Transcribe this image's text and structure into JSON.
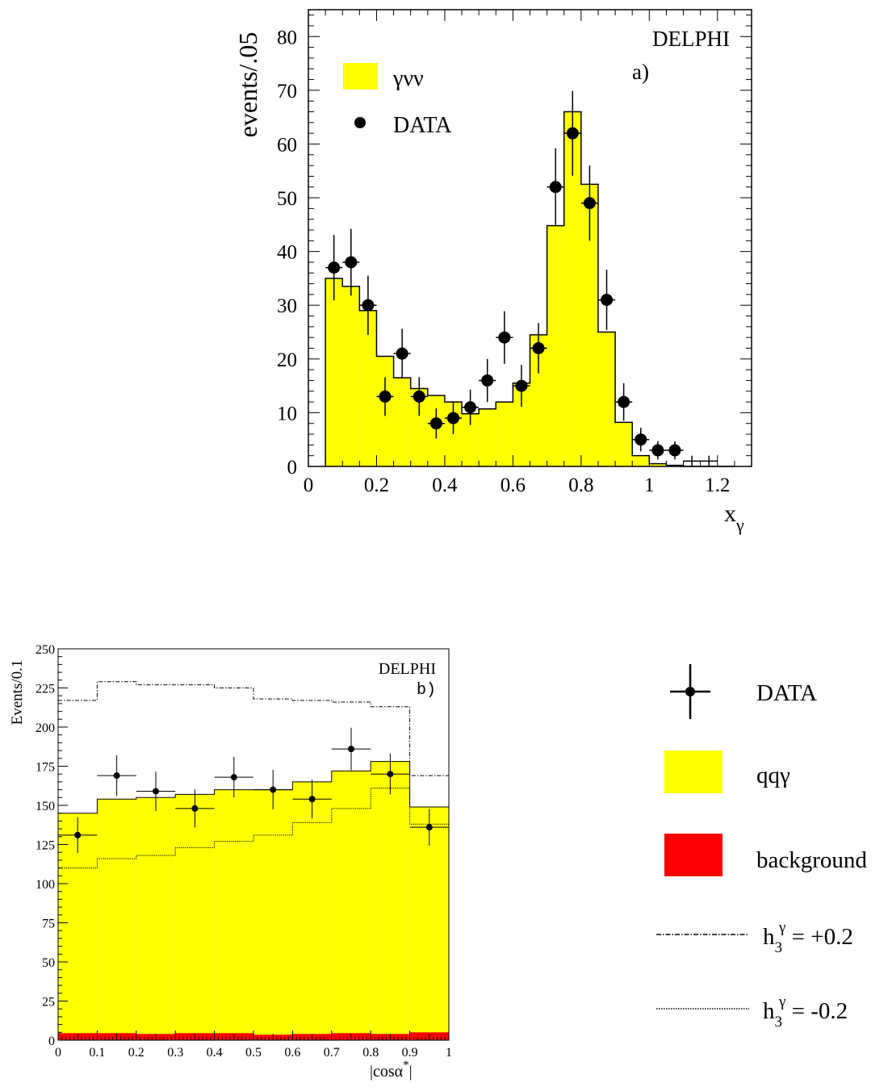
{
  "chart_data": [
    {
      "type": "bar",
      "panel": "a)",
      "experiment": "DELPHI",
      "ylabel": "events/.05",
      "xlabel": "x",
      "xlabel_sub": "γ",
      "xlim": [
        0,
        1.3
      ],
      "ylim": [
        0,
        85
      ],
      "xticks": [
        0,
        0.2,
        0.4,
        0.6,
        0.8,
        1,
        1.2
      ],
      "xtick_labels": [
        "0",
        "0.2",
        "0.4",
        "0.6",
        "0.8",
        "1",
        "1.2"
      ],
      "yticks": [
        0,
        10,
        20,
        30,
        40,
        50,
        60,
        70,
        80
      ],
      "ytick_labels": [
        "0",
        "10",
        "20",
        "30",
        "40",
        "50",
        "60",
        "70",
        "80"
      ],
      "legend_position": "top-left",
      "legend": {
        "mc": "γνν",
        "data": "DATA"
      },
      "colors": {
        "mc_fill": "#ffff00",
        "data": "#000000"
      },
      "mc_bins": {
        "edges": [
          0.05,
          0.1,
          0.15,
          0.2,
          0.25,
          0.3,
          0.35,
          0.4,
          0.45,
          0.5,
          0.55,
          0.6,
          0.65,
          0.7,
          0.75,
          0.8,
          0.85,
          0.9,
          0.95,
          1.0,
          1.05,
          1.1,
          1.15,
          1.2,
          1.25
        ],
        "values": [
          35,
          33.5,
          29,
          20.5,
          16.5,
          14.5,
          13.2,
          12,
          9.8,
          10.7,
          12,
          15.5,
          24.5,
          44.8,
          66,
          52.5,
          25,
          8.2,
          2,
          0.5,
          0.2,
          0,
          0,
          0
        ]
      },
      "data_points": {
        "x": [
          0.075,
          0.125,
          0.175,
          0.225,
          0.275,
          0.325,
          0.375,
          0.425,
          0.475,
          0.525,
          0.575,
          0.625,
          0.675,
          0.725,
          0.775,
          0.825,
          0.875,
          0.925,
          0.975,
          1.025,
          1.075,
          1.125,
          1.175
        ],
        "y": [
          37,
          38,
          30,
          13,
          21,
          13,
          8,
          9,
          11,
          16,
          24,
          15,
          22,
          52,
          62,
          49,
          31,
          12,
          5,
          3,
          3,
          1,
          1
        ],
        "err": [
          6.1,
          6.2,
          5.5,
          3.6,
          4.6,
          3.6,
          2.8,
          3,
          3.3,
          4,
          4.9,
          3.9,
          4.7,
          7.2,
          7.9,
          7,
          5.6,
          3.5,
          2.2,
          1.7,
          1.7,
          1,
          1
        ]
      }
    },
    {
      "type": "bar",
      "panel": "b)",
      "experiment": "DELPHI",
      "ylabel": "Events/0.1",
      "xlabel": "|cosα",
      "xlabel_sup": "*",
      "xlabel_end": "|",
      "xlim": [
        0,
        1
      ],
      "ylim": [
        0,
        250
      ],
      "xticks": [
        0,
        0.1,
        0.2,
        0.3,
        0.4,
        0.5,
        0.6,
        0.7,
        0.8,
        0.9,
        1
      ],
      "xtick_labels": [
        "0",
        "0.1",
        "0.2",
        "0.3",
        "0.4",
        "0.5",
        "0.6",
        "0.7",
        "0.8",
        "0.9",
        "1"
      ],
      "yticks": [
        0,
        25,
        50,
        75,
        100,
        125,
        150,
        175,
        200,
        225,
        250
      ],
      "ytick_labels": [
        "0",
        "25",
        "50",
        "75",
        "100",
        "125",
        "150",
        "175",
        "200",
        "225",
        "250"
      ],
      "legend_position": "right",
      "legend": {
        "data": "DATA",
        "mc": "qqγ",
        "bkg": "background",
        "h_plus": "h",
        "h_plus_sub": "3",
        "h_plus_sup": "γ",
        "h_plus_val": " = +0.2",
        "h_minus": "h",
        "h_minus_sub": "3",
        "h_minus_sup": "γ",
        "h_minus_val": " = -0.2"
      },
      "colors": {
        "mc_fill": "#ffff00",
        "bkg_fill": "#ff0000",
        "data": "#000000"
      },
      "bin_edges": [
        0,
        0.1,
        0.2,
        0.3,
        0.4,
        0.5,
        0.6,
        0.7,
        0.8,
        0.9,
        1.0
      ],
      "mc": [
        145,
        154,
        155,
        157,
        160,
        160,
        165,
        172,
        178,
        149
      ],
      "background": [
        4.5,
        4.5,
        4,
        4.5,
        4.5,
        3.5,
        4,
        4.5,
        4,
        5
      ],
      "h_plus_0_2": [
        217,
        229,
        227,
        227,
        225,
        218,
        217,
        216,
        213,
        169
      ],
      "h_minus_0_2": [
        110,
        116,
        118,
        123,
        127,
        131,
        139,
        148,
        161,
        138
      ],
      "data_points": {
        "x": [
          0.05,
          0.15,
          0.25,
          0.35,
          0.45,
          0.55,
          0.65,
          0.75,
          0.85,
          0.95
        ],
        "y": [
          131,
          169,
          159,
          148,
          168,
          160,
          154,
          186,
          170,
          136
        ],
        "err": [
          11.4,
          13,
          12.6,
          12.2,
          13,
          12.6,
          12.4,
          13.6,
          13,
          11.7
        ]
      }
    }
  ]
}
